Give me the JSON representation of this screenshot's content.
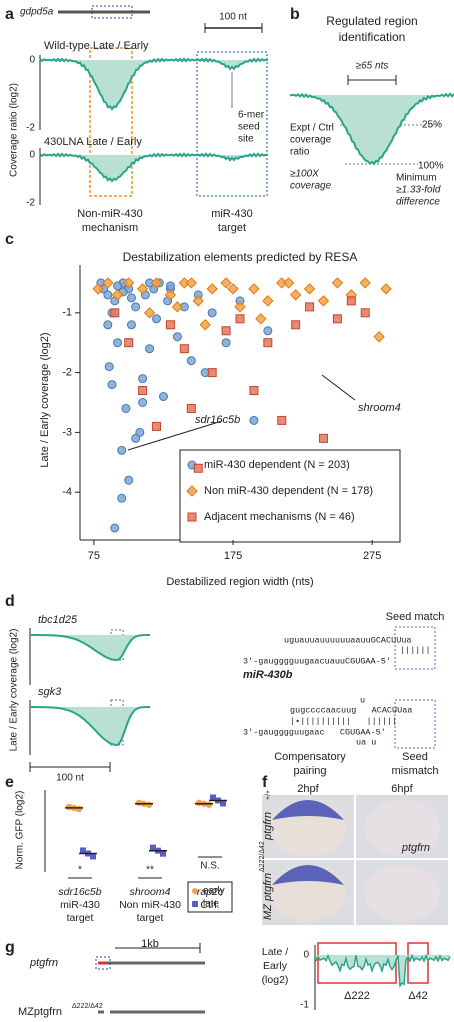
{
  "panel_labels": [
    "a",
    "b",
    "c",
    "d",
    "e",
    "f",
    "g"
  ],
  "panel_a": {
    "gene": "gdpd5a",
    "scale": "100 nt",
    "plot1_title": "Wild-type Late / Early",
    "plot2_title": "430LNA Late / Early",
    "y_label": "Coverage ratio (log2)",
    "y_ticks1": [
      0,
      -2
    ],
    "y_ticks2": [
      0,
      -2
    ],
    "seed_note": [
      "6-mer",
      "seed",
      "site"
    ],
    "left_label": [
      "Non-miR-430",
      "mechanism"
    ],
    "right_label": [
      "miR-430",
      "target"
    ]
  },
  "panel_b": {
    "title": [
      "Regulated region",
      "identification"
    ],
    "width": "≥65 nts",
    "pct_25": "25%",
    "pct_100": "100%",
    "ratio": [
      "Expt / Ctrl",
      "coverage",
      "ratio"
    ],
    "coverage": [
      "≥100X",
      "coverage"
    ],
    "minimum": [
      "Minimum",
      "≥1.33-fold",
      "difference"
    ]
  },
  "chart_data": [
    {
      "type": "scatter",
      "title": "Destabilization elements predicted by RESA",
      "x_label": "Destabilized region width (nts)",
      "y_label": "Late / Early coverage (log2)",
      "xlim": [
        65,
        295
      ],
      "ylim": [
        -4.8,
        -0.2
      ],
      "xticks": [
        75,
        175,
        275
      ],
      "yticks": [
        -1,
        -2,
        -3,
        -4
      ],
      "annotations": [
        "shroom4",
        "sdr16c5b"
      ],
      "series": [
        {
          "name": "miR-430 dependent (N = 203)",
          "color": "#7ba6d6",
          "marker": "circle",
          "x": [
            80,
            82,
            85,
            86,
            88,
            90,
            92,
            95,
            96,
            98,
            100,
            102,
            105,
            108,
            110,
            112,
            115,
            118,
            120,
            122,
            125,
            128,
            130,
            135,
            140,
            145,
            150,
            155,
            160,
            170,
            180,
            190,
            200,
            90,
            95,
            100,
            105,
            110,
            85,
            88,
            92,
            96,
            102,
            115,
            130
          ],
          "values": [
            -0.5,
            -0.6,
            -0.7,
            -1.9,
            -2.2,
            -0.8,
            -1.5,
            -3.3,
            -0.5,
            -2.6,
            -0.6,
            -1.2,
            -0.9,
            -3.0,
            -2.1,
            -0.7,
            -1.6,
            -0.6,
            -1.1,
            -0.5,
            -2.4,
            -0.8,
            -0.6,
            -1.4,
            -0.9,
            -1.8,
            -0.7,
            -2.0,
            -1.0,
            -1.5,
            -0.8,
            -2.8,
            -1.3,
            -4.6,
            -4.1,
            -3.8,
            -3.1,
            -2.5,
            -1.2,
            -1.0,
            -0.55,
            -0.65,
            -0.75,
            -0.5,
            -0.55
          ]
        },
        {
          "name": "Non miR-430 dependent (N = 178)",
          "color": "#f4a24a",
          "marker": "diamond",
          "x": [
            78,
            85,
            92,
            100,
            110,
            120,
            130,
            140,
            150,
            160,
            170,
            180,
            190,
            200,
            210,
            220,
            230,
            240,
            250,
            260,
            270,
            280,
            115,
            135,
            155,
            175,
            195,
            215,
            145,
            285
          ],
          "values": [
            -0.6,
            -0.5,
            -0.7,
            -0.5,
            -0.6,
            -0.5,
            -0.7,
            -0.5,
            -0.8,
            -0.6,
            -0.5,
            -0.9,
            -0.6,
            -0.8,
            -0.5,
            -0.7,
            -0.6,
            -0.8,
            -0.5,
            -0.7,
            -0.5,
            -1.4,
            -1.0,
            -0.9,
            -1.2,
            -0.6,
            -1.1,
            -0.5,
            -0.5,
            -0.6
          ]
        },
        {
          "name": "Adjacent mechanisms (N = 46)",
          "color": "#e8765c",
          "marker": "square",
          "x": [
            90,
            100,
            110,
            120,
            130,
            140,
            150,
            160,
            170,
            180,
            190,
            200,
            210,
            220,
            230,
            240,
            250,
            260,
            270,
            145
          ],
          "values": [
            -1.0,
            -1.5,
            -2.3,
            -2.9,
            -1.2,
            -1.6,
            -3.6,
            -2.0,
            -1.3,
            -1.1,
            -2.3,
            -1.5,
            -2.8,
            -1.2,
            -0.9,
            -3.1,
            -1.1,
            -0.8,
            -1.0,
            -2.6
          ]
        }
      ]
    },
    {
      "type": "dot",
      "y_label": "Norm. GFP (log2)",
      "ylim": [
        -2.4,
        0.5
      ],
      "categories": [
        [
          "sdr16c5b",
          "miR-430",
          "target"
        ],
        [
          "shroom4",
          "Non miR-430",
          "target"
        ],
        [
          "rap2c",
          "Ctrl."
        ]
      ],
      "significance": [
        "*",
        "**",
        "N.S."
      ],
      "series": [
        {
          "name": "early",
          "color": "#f4a24a",
          "values": [
            -0.15,
            0.0,
            0.0
          ]
        },
        {
          "name": "late",
          "color": "#5a5fc8",
          "values": [
            -1.8,
            -1.7,
            0.12
          ]
        }
      ]
    }
  ],
  "panel_d": {
    "genes": [
      "tbc1d25",
      "sgk3"
    ],
    "y_label": "Late / Early coverage (log2)",
    "scale": "100 nt",
    "seed_match": "Seed match",
    "seq1": [
      "uguauuauuuuuuaauuGCACUUua",
      "||||||",
      "3'-gaugggguugaacuauuCGUGAA-5'"
    ],
    "mirna": "miR-430b",
    "seq2": [
      "u",
      "gugccccaacuug   ACACUUaa",
      "|•||||||||||   ||||||",
      "3'-gaugggguugaac   CGUGAA-5'",
      "ua u"
    ],
    "compensatory": [
      "Compensatory",
      "pairing"
    ],
    "mismatch": [
      "Seed",
      "mismatch"
    ]
  },
  "panel_f": {
    "times": [
      "2hpf",
      "6hpf"
    ],
    "probe": "ptgfrn",
    "row1": "ptgfrn",
    "row1_sup": "+/+",
    "row2": "MZ ptgfrn",
    "row2_sup": "Δ222/Δ42"
  },
  "panel_g": {
    "gene": "ptgfrn",
    "scale": "1kb",
    "mutant": "MZptgfrn",
    "mutant_sup": "Δ222/Δ42",
    "y_label": [
      "Late /",
      "Early",
      "(log2)"
    ],
    "y_ticks": [
      0,
      -1
    ],
    "deletions": [
      "Δ222",
      "Δ42"
    ]
  }
}
